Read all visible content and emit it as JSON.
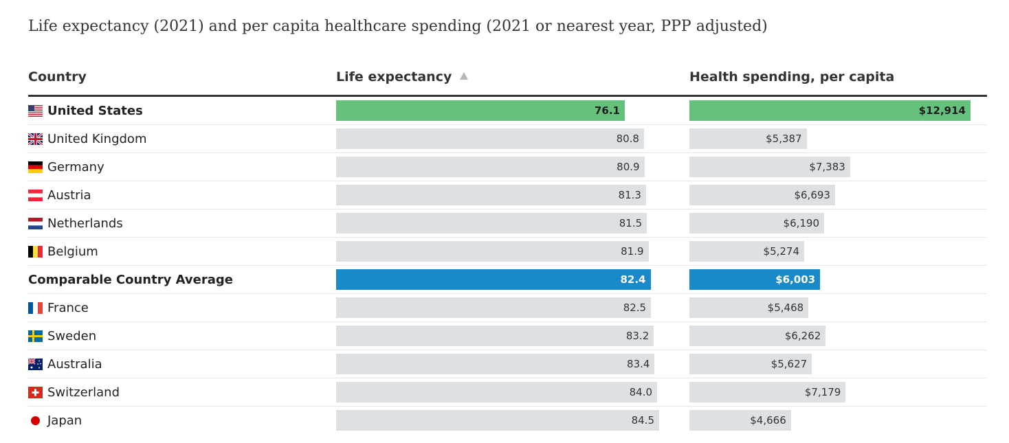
{
  "title": "Life expectancy (2021) and per capita healthcare spending (2021 or nearest year, PPP adjusted)",
  "colors": {
    "us": "#65c27d",
    "average": "#1a89c9",
    "default": "#dde1e4"
  },
  "chart_data": {
    "type": "table",
    "title": "Life expectancy (2021) and per capita healthcare spending (2021 or nearest year, PPP adjusted)",
    "columns": [
      "Country",
      "Life expectancy",
      "Health spending, per capita"
    ],
    "sorted_by": "Life expectancy",
    "rows": [
      {
        "country": "United States",
        "flag": "us-flag-icon",
        "life": 76.1,
        "life_label": "76.1",
        "spend": 12914,
        "spend_label": "$12,914",
        "style": "us"
      },
      {
        "country": "United Kingdom",
        "flag": "uk-flag-icon",
        "life": 80.8,
        "life_label": "80.8",
        "spend": 5387,
        "spend_label": "$5,387",
        "style": "default"
      },
      {
        "country": "Germany",
        "flag": "germany-flag-icon",
        "life": 80.9,
        "life_label": "80.9",
        "spend": 7383,
        "spend_label": "$7,383",
        "style": "default"
      },
      {
        "country": "Austria",
        "flag": "austria-flag-icon",
        "life": 81.3,
        "life_label": "81.3",
        "spend": 6693,
        "spend_label": "$6,693",
        "style": "default"
      },
      {
        "country": "Netherlands",
        "flag": "netherlands-flag-icon",
        "life": 81.5,
        "life_label": "81.5",
        "spend": 6190,
        "spend_label": "$6,190",
        "style": "default"
      },
      {
        "country": "Belgium",
        "flag": "belgium-flag-icon",
        "life": 81.9,
        "life_label": "81.9",
        "spend": 5274,
        "spend_label": "$5,274",
        "style": "default"
      },
      {
        "country": "Comparable Country Average",
        "flag": "",
        "life": 82.4,
        "life_label": "82.4",
        "spend": 6003,
        "spend_label": "$6,003",
        "style": "avg"
      },
      {
        "country": "France",
        "flag": "france-flag-icon",
        "life": 82.5,
        "life_label": "82.5",
        "spend": 5468,
        "spend_label": "$5,468",
        "style": "default"
      },
      {
        "country": "Sweden",
        "flag": "sweden-flag-icon",
        "life": 83.2,
        "life_label": "83.2",
        "spend": 6262,
        "spend_label": "$6,262",
        "style": "default"
      },
      {
        "country": "Australia",
        "flag": "australia-flag-icon",
        "life": 83.4,
        "life_label": "83.4",
        "spend": 5627,
        "spend_label": "$5,627",
        "style": "default"
      },
      {
        "country": "Switzerland",
        "flag": "switzerland-flag-icon",
        "life": 84.0,
        "life_label": "84.0",
        "spend": 7179,
        "spend_label": "$7,179",
        "style": "default"
      },
      {
        "country": "Japan",
        "flag": "japan-flag-icon",
        "life": 84.5,
        "life_label": "84.5",
        "spend": 4666,
        "spend_label": "$4,666",
        "style": "default"
      }
    ]
  }
}
